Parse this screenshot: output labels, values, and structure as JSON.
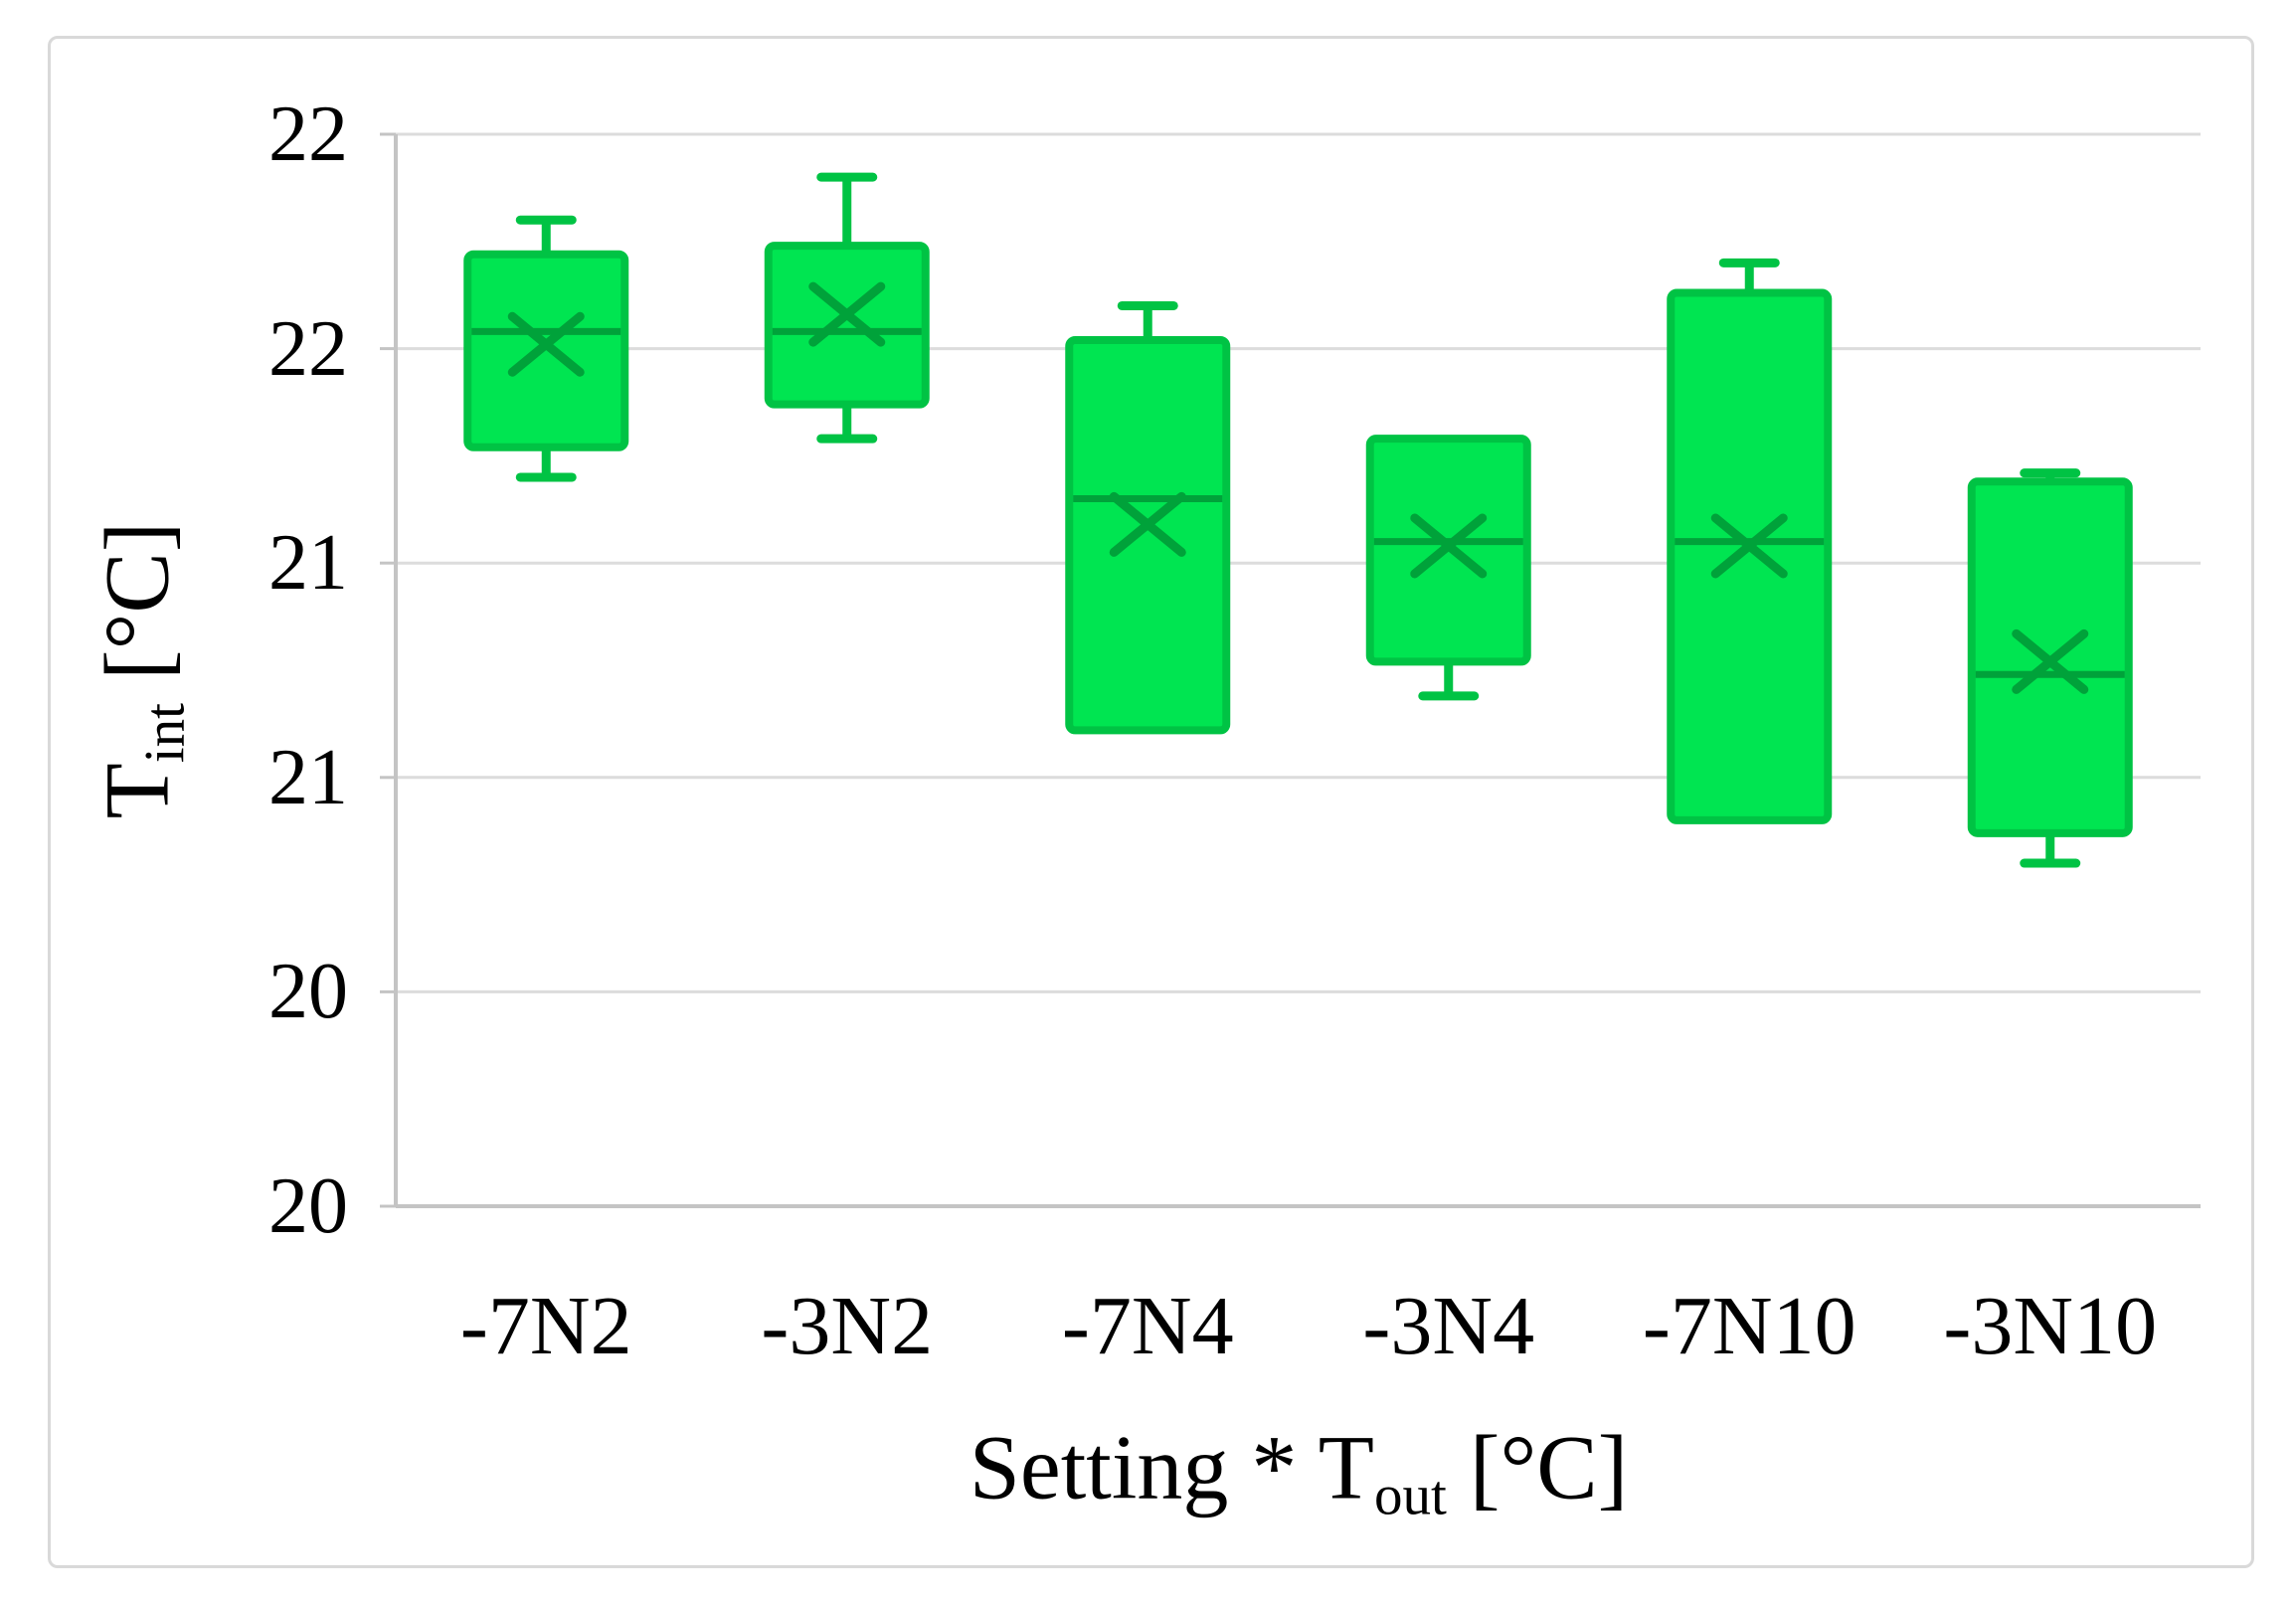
{
  "chart_data": {
    "type": "box",
    "title": "",
    "categories": [
      "-7N2",
      "-3N2",
      "-7N4",
      "-3N4",
      "-7N10",
      "-3N10"
    ],
    "series": [
      {
        "category": "-7N2",
        "min": 21.2,
        "q1": 21.27,
        "median": 21.54,
        "mean": 21.51,
        "q3": 21.72,
        "max": 21.8
      },
      {
        "category": "-3N2",
        "min": 21.29,
        "q1": 21.37,
        "median": 21.54,
        "mean": 21.58,
        "q3": 21.74,
        "max": 21.9
      },
      {
        "category": "-7N4",
        "min": 20.61,
        "q1": 20.61,
        "median": 21.15,
        "mean": 21.09,
        "q3": 21.52,
        "max": 21.6
      },
      {
        "category": "-3N4",
        "min": 20.69,
        "q1": 20.77,
        "median": 21.05,
        "mean": 21.04,
        "q3": 21.29,
        "max": 21.29
      },
      {
        "category": "-7N10",
        "min": 20.4,
        "q1": 20.4,
        "median": 21.05,
        "mean": 21.04,
        "q3": 21.63,
        "max": 21.7
      },
      {
        "category": "-3N10",
        "min": 20.3,
        "q1": 20.37,
        "median": 20.74,
        "mean": 20.77,
        "q3": 21.19,
        "max": 21.21
      }
    ],
    "xlabel": {
      "base": "Setting * T",
      "sub": "out",
      "unit": " [°C]"
    },
    "ylabel": {
      "base": "T",
      "sub": "int",
      "unit": " [°C]"
    },
    "y_axis": {
      "min": 19.5,
      "max": 22,
      "step": 0.5,
      "tick_values": [
        22,
        21.5,
        21,
        20.5,
        20,
        19.5
      ],
      "tick_labels": [
        "22",
        "22",
        "21",
        "21",
        "20",
        "20"
      ]
    },
    "grid": true,
    "legend": "none",
    "colors": {
      "box_fill": "#00E551",
      "box_stroke": "#00C344",
      "median_mean_stroke": "#00A23A",
      "gridline": "#DCDCDC",
      "axis_line": "#C4C4C4",
      "text": "#000000",
      "frame_border": "#D9D9D9"
    }
  }
}
